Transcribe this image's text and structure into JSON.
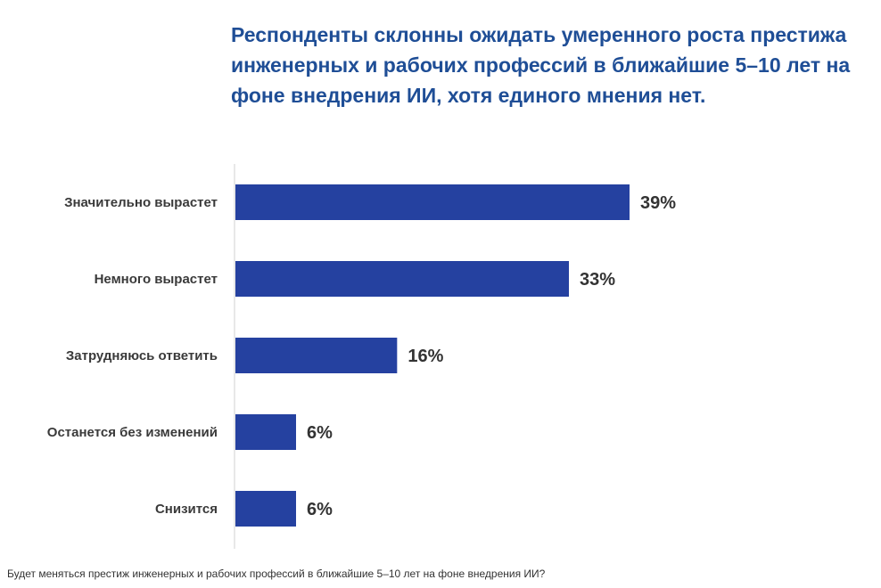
{
  "chart_data": {
    "type": "bar",
    "orientation": "horizontal",
    "title": "Респонденты склонны ожидать умеренного роста престижа инженерных и рабочих профессий в ближайшие 5–10 лет на фоне внедрения ИИ, хотя единого мнения нет.",
    "categories": [
      "Значительно вырастет",
      "Немного вырастет",
      "Затрудняюсь ответить",
      "Останется без изменений",
      "Снизится"
    ],
    "values": [
      39,
      33,
      16,
      6,
      6
    ],
    "value_labels": [
      "39%",
      "33%",
      "16%",
      "6%",
      "6%"
    ],
    "xlim": [
      0,
      39
    ],
    "grid": false,
    "legend": "none",
    "bar_color": "#2541a0",
    "title_color": "#1f4e96",
    "axis_color": "#d0d0d0",
    "footnote": "Будет меняться престиж инженерных и рабочих профессий в ближайшие 5–10 лет на фоне внедрения ИИ?"
  }
}
